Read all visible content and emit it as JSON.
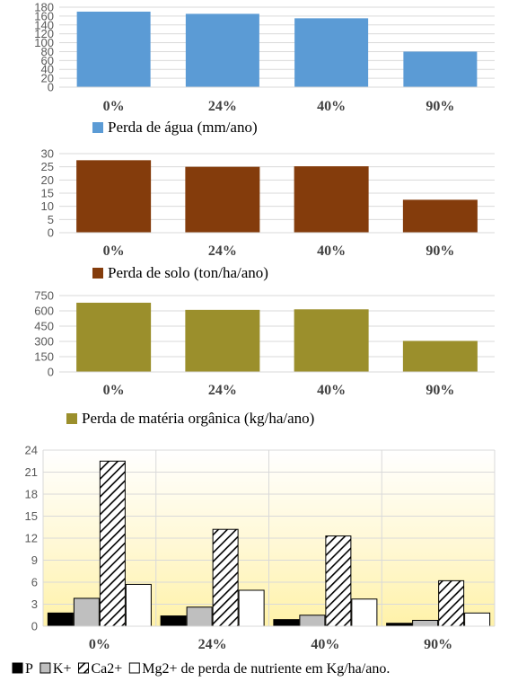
{
  "chart_data": [
    {
      "type": "bar",
      "categories": [
        "0%",
        "24%",
        "40%",
        "90%"
      ],
      "series": [
        {
          "name": "Perda de água (mm/ano)",
          "values": [
            170,
            165,
            155,
            80
          ],
          "color": "#5b9bd5"
        }
      ],
      "ylim": [
        0,
        180
      ],
      "yticks": [
        "0",
        "20",
        "40",
        "60",
        "80",
        "100",
        "120",
        "140",
        "160",
        "180"
      ],
      "grid": true,
      "legend": "bottom-left"
    },
    {
      "type": "bar",
      "categories": [
        "0%",
        "24%",
        "40%",
        "90%"
      ],
      "series": [
        {
          "name": "Perda de solo (ton/ha/ano)",
          "values": [
            27.5,
            25,
            25.2,
            12.5
          ],
          "color": "#843c0c"
        }
      ],
      "ylim": [
        0,
        30
      ],
      "yticks": [
        "0",
        "5",
        "10",
        "15",
        "20",
        "25",
        "30"
      ],
      "grid": true,
      "legend": "bottom-left"
    },
    {
      "type": "bar",
      "categories": [
        "0%",
        "24%",
        "40%",
        "90%"
      ],
      "series": [
        {
          "name": "Perda de matéria orgânica (kg/ha/ano)",
          "values": [
            680,
            610,
            615,
            305
          ],
          "color": "#9b8f2c"
        }
      ],
      "ylim": [
        0,
        750
      ],
      "yticks": [
        "0",
        "150",
        "300",
        "450",
        "600",
        "750"
      ],
      "grid": true,
      "legend": "bottom-left"
    },
    {
      "type": "bar",
      "categories": [
        "0%",
        "24%",
        "40%",
        "90%"
      ],
      "series": [
        {
          "name": "P",
          "values": [
            1.8,
            1.4,
            0.9,
            0.4
          ],
          "color": "#000000",
          "fill": "solid"
        },
        {
          "name": "K+",
          "values": [
            3.8,
            2.6,
            1.5,
            0.8
          ],
          "color": "#bfbfbf",
          "fill": "solid"
        },
        {
          "name": "Ca2+",
          "values": [
            22.5,
            13.2,
            12.3,
            6.2
          ],
          "color": "#000000",
          "fill": "hatched"
        },
        {
          "name": "Mg2+",
          "values": [
            5.7,
            4.9,
            3.7,
            1.8
          ],
          "color": "#ffffff",
          "fill": "solid"
        }
      ],
      "legend_suffix": "de perda de nutriente em Kg/ha/ano.",
      "ylim": [
        0,
        24
      ],
      "yticks": [
        "0",
        "3",
        "6",
        "9",
        "12",
        "15",
        "18",
        "21",
        "24"
      ],
      "grid": true,
      "legend": "bottom",
      "background": "yellow-gradient"
    }
  ]
}
